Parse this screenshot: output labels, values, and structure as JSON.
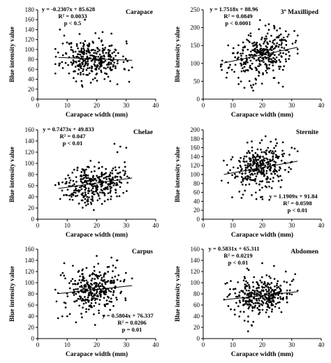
{
  "chart_data": [
    {
      "type": "scatter",
      "panel_label": "Carapace",
      "xlabel": "Carapace width (mm)",
      "ylabel": "Blue intensity value",
      "xlim": [
        0,
        40
      ],
      "ylim": [
        0,
        180
      ],
      "xticks": [
        0,
        10,
        20,
        30,
        40
      ],
      "yticks": [
        0,
        20,
        40,
        60,
        80,
        100,
        120,
        140,
        160,
        180
      ],
      "equation": "y = -0.2307x + 85.628",
      "r_squared": "R² = 0.0033",
      "p_value": "p < 0.5",
      "trendline": {
        "slope": -0.2307,
        "intercept": 85.628,
        "x_range": [
          7,
          32
        ]
      },
      "annotation_position": "top-left",
      "cloud": {
        "n": 320,
        "x_mean": 18.5,
        "x_sd": 5.0,
        "x_range": [
          6,
          32
        ],
        "resid_sd": 19,
        "seed": 11
      },
      "points": [
        [
          7.5,
          140
        ],
        [
          8.5,
          112
        ],
        [
          9,
          128
        ],
        [
          16,
          160
        ],
        [
          22,
          135
        ],
        [
          25,
          132
        ],
        [
          15,
          28
        ],
        [
          18,
          33
        ],
        [
          27,
          30
        ],
        [
          31,
          35
        ]
      ]
    },
    {
      "type": "scatter",
      "panel_label": "3º Maxilliped",
      "xlabel": "Carapace width (mm)",
      "ylabel": "Blue intensity value",
      "xlim": [
        0,
        40
      ],
      "ylim": [
        0,
        250
      ],
      "xticks": [
        0,
        10,
        20,
        30,
        40
      ],
      "yticks": [
        0,
        50,
        100,
        150,
        200,
        250
      ],
      "equation": "y = 1.7518x + 88.96",
      "r_squared": "R² = 0.0849",
      "p_value": "p < 0.0001",
      "trendline": {
        "slope": 1.7518,
        "intercept": 88.96,
        "x_range": [
          7,
          32
        ]
      },
      "annotation_position": "top-left",
      "cloud": {
        "n": 320,
        "x_mean": 19.5,
        "x_sd": 5.2,
        "x_range": [
          6,
          32
        ],
        "resid_sd": 32,
        "seed": 23
      },
      "points": [
        [
          24,
          205
        ],
        [
          26,
          198
        ],
        [
          28,
          190
        ],
        [
          27,
          35
        ],
        [
          12,
          42
        ],
        [
          17,
          40
        ]
      ]
    },
    {
      "type": "scatter",
      "panel_label": "Chelae",
      "xlabel": "Carapace width (mm)",
      "ylabel": "Blue intensity value",
      "xlim": [
        0,
        40
      ],
      "ylim": [
        0,
        160
      ],
      "xticks": [
        0,
        10,
        20,
        30,
        40
      ],
      "yticks": [
        0,
        20,
        40,
        60,
        80,
        100,
        120,
        140,
        160
      ],
      "equation": "y = 0.7473x + 49.833",
      "r_squared": "R² = 0.047",
      "p_value": "p < 0.01",
      "trendline": {
        "slope": 0.7473,
        "intercept": 49.833,
        "x_range": [
          7,
          32
        ]
      },
      "annotation_position": "top-left",
      "cloud": {
        "n": 320,
        "x_mean": 19.0,
        "x_sd": 5.0,
        "x_range": [
          6,
          32
        ],
        "resid_sd": 17,
        "seed": 37
      },
      "points": [
        [
          26,
          135
        ],
        [
          28,
          130
        ],
        [
          30,
          128
        ],
        [
          27,
          120
        ],
        [
          14,
          28
        ],
        [
          18,
          30
        ]
      ]
    },
    {
      "type": "scatter",
      "panel_label": "Sternite",
      "xlabel": "Carapace width (mm)",
      "ylabel": "Blue intensity value",
      "xlim": [
        0,
        40
      ],
      "ylim": [
        0,
        200
      ],
      "xticks": [
        0,
        10,
        20,
        30,
        40
      ],
      "yticks": [
        0,
        20,
        40,
        60,
        80,
        100,
        120,
        140,
        160,
        180,
        200
      ],
      "equation": "y = 1.1909x + 91.84",
      "r_squared": "R² = 0.0598",
      "p_value": "p < 0.01",
      "trendline": {
        "slope": 1.1909,
        "intercept": 91.84,
        "x_range": [
          7,
          32
        ]
      },
      "annotation_position": "bottom-right",
      "cloud": {
        "n": 320,
        "x_mean": 19.5,
        "x_sd": 5.0,
        "x_range": [
          6,
          32
        ],
        "resid_sd": 25,
        "seed": 53
      },
      "points": [
        [
          25,
          170
        ],
        [
          27,
          172
        ],
        [
          30,
          160
        ],
        [
          31,
          158
        ],
        [
          18,
          45
        ],
        [
          20,
          50
        ]
      ]
    },
    {
      "type": "scatter",
      "panel_label": "Carpus",
      "xlabel": "Carapace width (mm)",
      "ylabel": "Blue intensity value",
      "xlim": [
        0,
        40
      ],
      "ylim": [
        0,
        160
      ],
      "xticks": [
        0,
        10,
        20,
        30,
        40
      ],
      "yticks": [
        0,
        20,
        40,
        60,
        80,
        100,
        120,
        140,
        160
      ],
      "equation": "y = 0.5804x + 76.337",
      "r_squared": "R² = 0.0206",
      "p_value": "p = 0.01",
      "trendline": {
        "slope": 0.5804,
        "intercept": 76.337,
        "x_range": [
          7,
          32
        ]
      },
      "annotation_position": "bottom-right",
      "cloud": {
        "n": 320,
        "x_mean": 19.0,
        "x_sd": 5.0,
        "x_range": [
          6,
          32
        ],
        "resid_sd": 20,
        "seed": 71
      },
      "points": [
        [
          20,
          148
        ],
        [
          25,
          145
        ],
        [
          27,
          140
        ],
        [
          9,
          135
        ],
        [
          10,
          40
        ],
        [
          15,
          38
        ]
      ]
    },
    {
      "type": "scatter",
      "panel_label": "Abdomen",
      "xlabel": "Carapace width (mm)",
      "ylabel": "Blue intensity value",
      "xlim": [
        0,
        40
      ],
      "ylim": [
        0,
        160
      ],
      "xticks": [
        0,
        10,
        20,
        30,
        40
      ],
      "yticks": [
        0,
        20,
        40,
        60,
        80,
        100,
        120,
        140,
        160
      ],
      "equation": "y = 0.5831x + 65.311",
      "r_squared": "R² = 0.0219",
      "p_value": "p < 0.01",
      "trendline": {
        "slope": 0.5831,
        "intercept": 65.311,
        "x_range": [
          7,
          32
        ]
      },
      "annotation_position": "top-left",
      "cloud": {
        "n": 320,
        "x_mean": 19.5,
        "x_sd": 5.0,
        "x_range": [
          6,
          32
        ],
        "resid_sd": 17,
        "seed": 89
      },
      "points": [
        [
          20,
          135
        ],
        [
          24,
          130
        ],
        [
          14,
          32
        ],
        [
          17,
          30
        ],
        [
          28,
          120
        ]
      ]
    }
  ]
}
